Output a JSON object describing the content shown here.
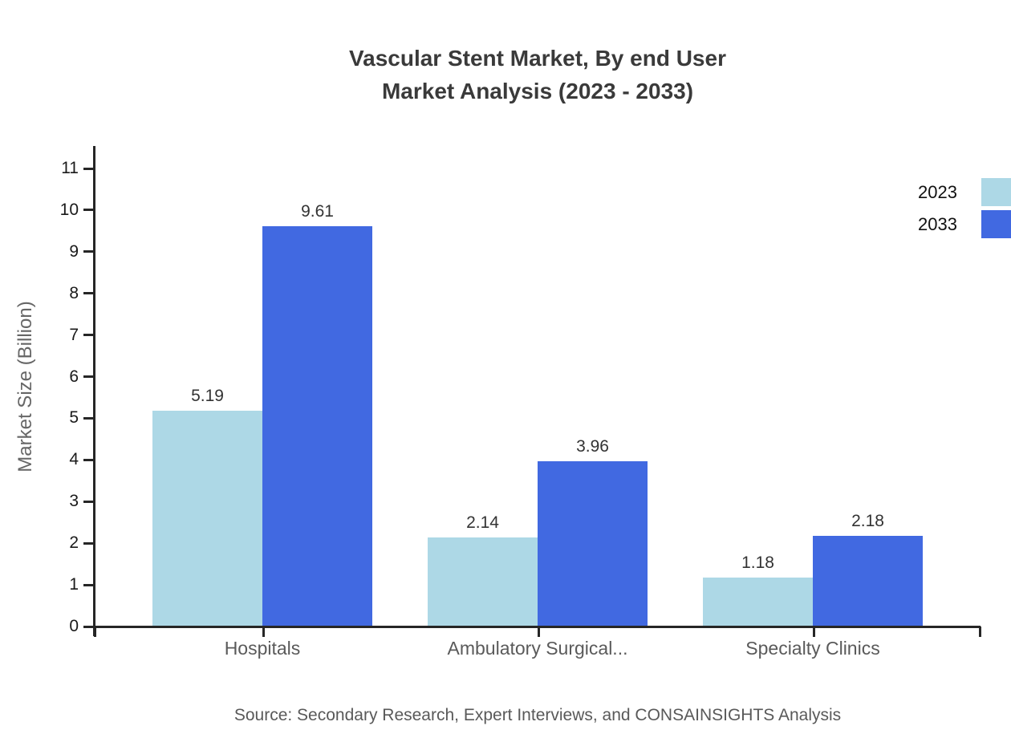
{
  "chart_data": {
    "type": "bar",
    "title": "Vascular Stent Market, By end User Market Analysis (2023 - 2033)",
    "title_line1": "Vascular Stent Market, By end User",
    "title_line2": "Market Analysis (2023 - 2033)",
    "xlabel": "",
    "ylabel": "Market Size (Billion)",
    "categories": [
      "Hospitals",
      "Ambulatory Surgical...",
      "Specialty Clinics"
    ],
    "series": [
      {
        "name": "2023",
        "color": "#ADD8E6",
        "values": [
          5.19,
          2.14,
          1.18
        ]
      },
      {
        "name": "2033",
        "color": "#4169E1",
        "values": [
          9.61,
          3.96,
          2.18
        ]
      }
    ],
    "ylim": [
      0,
      11
    ],
    "yticks": [
      0,
      1,
      2,
      3,
      4,
      5,
      6,
      7,
      8,
      9,
      10,
      11
    ],
    "grid": false,
    "legend_position": "top-right",
    "value_label_decimals": 2,
    "source": "Source: Secondary Research, Expert Interviews, and CONSAINSIGHTS Analysis"
  },
  "colors": {
    "axis": "#262626",
    "title_text": "#3a3a3a",
    "tick_text": "#1a1a1a",
    "category_text": "#5a5a5a",
    "y_axis_title_text": "#666666",
    "source_text": "#595959",
    "background": "#ffffff"
  }
}
